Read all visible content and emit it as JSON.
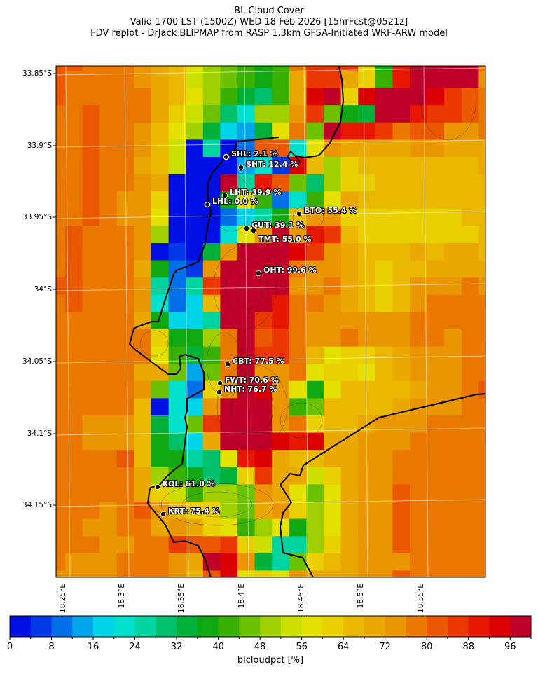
{
  "title": {
    "line1": "BL Cloud Cover",
    "line2": "Valid 1700 LST (1500Z) WED 18 Feb 2026 [15hrFcst@0521z]",
    "line3": "FDV replot - DrJack BLIPMAP from RASP 1.3km GFSA-Initiated WRF-ARW model"
  },
  "axes": {
    "y_ticks": [
      "33.85°S",
      "33.9°S",
      "33.95°S",
      "34°S",
      "34.05°S",
      "34.1°S",
      "34.15°S"
    ],
    "x_ticks": [
      "18.25°E",
      "18.3°E",
      "18.35°E",
      "18.4°E",
      "18.45°E",
      "18.5°E",
      "18.55°E"
    ]
  },
  "colorbar": {
    "label": "blcloudpct [%]",
    "ticks": [
      "0",
      "8",
      "16",
      "24",
      "32",
      "40",
      "48",
      "56",
      "64",
      "72",
      "80",
      "88",
      "96"
    ],
    "range": [
      0,
      100
    ],
    "step": 4,
    "colors": [
      "#0010e4",
      "#0038e8",
      "#0070e8",
      "#00a4e8",
      "#00d4e8",
      "#00e0cc",
      "#00d4a0",
      "#00c06c",
      "#00b038",
      "#10a810",
      "#38b000",
      "#6cc200",
      "#a0d000",
      "#cce000",
      "#e4e000",
      "#ead000",
      "#eab800",
      "#eaa800",
      "#ea9600",
      "#ea7800",
      "#ea5800",
      "#ea3800",
      "#e81800",
      "#dc0000",
      "#c00028"
    ]
  },
  "stations": [
    {
      "label": "SHL: 2.1 %"
    },
    {
      "label": "SHT: 12.4 %"
    },
    {
      "label": "LHT: 39.9 %"
    },
    {
      "label": "LHL: 0.0 %"
    },
    {
      "label": "BTO: 55.4 %"
    },
    {
      "label": "GUT: 39.1 %"
    },
    {
      "label": "TMT: 55.0 %"
    },
    {
      "label": "OHT: 99.6 %"
    },
    {
      "label": "CBT: 77.5 %"
    },
    {
      "label": "FWT: 70.6 %"
    },
    {
      "label": "NHT: 76.7 %"
    },
    {
      "label": "KOL: 61.0 %"
    },
    {
      "label": "KRT: 75.4 %"
    }
  ],
  "chart_data": {
    "type": "heatmap",
    "variable": "blcloudpct [%]",
    "lon_range": [
      "18.25°E",
      "18.55°E"
    ],
    "lat_range": [
      "33.85°S",
      "34.15°S"
    ],
    "grid": [
      [
        80,
        80,
        76,
        76,
        76,
        72,
        68,
        64,
        56,
        48,
        44,
        40,
        36,
        40,
        76,
        84,
        84,
        84,
        60,
        36,
        88,
        96,
        96,
        96,
        96,
        76
      ],
      [
        80,
        76,
        76,
        76,
        76,
        72,
        68,
        64,
        52,
        48,
        44,
        40,
        36,
        40,
        68,
        84,
        84,
        68,
        60,
        40,
        88,
        96,
        96,
        96,
        96,
        72
      ],
      [
        80,
        76,
        76,
        76,
        76,
        76,
        68,
        64,
        56,
        48,
        40,
        32,
        28,
        40,
        68,
        92,
        96,
        60,
        92,
        96,
        96,
        96,
        92,
        84,
        80,
        76
      ],
      [
        76,
        76,
        80,
        76,
        76,
        76,
        68,
        60,
        52,
        44,
        28,
        20,
        48,
        48,
        72,
        84,
        44,
        36,
        32,
        96,
        96,
        88,
        84,
        84,
        80,
        76
      ],
      [
        76,
        76,
        80,
        76,
        76,
        72,
        64,
        56,
        48,
        32,
        16,
        12,
        32,
        56,
        76,
        44,
        96,
        88,
        88,
        84,
        76,
        80,
        80,
        72,
        72,
        76
      ],
      [
        76,
        76,
        80,
        76,
        76,
        72,
        64,
        52,
        0,
        24,
        0,
        8,
        80,
        80,
        20,
        56,
        72,
        68,
        68,
        68,
        68,
        72,
        72,
        68,
        68,
        68
      ],
      [
        76,
        76,
        80,
        76,
        76,
        68,
        64,
        52,
        0,
        0,
        0,
        12,
        20,
        4,
        92,
        64,
        48,
        60,
        64,
        64,
        64,
        64,
        64,
        64,
        64,
        68
      ],
      [
        76,
        76,
        80,
        76,
        76,
        72,
        68,
        0,
        0,
        0,
        96,
        24,
        88,
        80,
        44,
        28,
        48,
        60,
        60,
        64,
        64,
        64,
        64,
        64,
        64,
        64
      ],
      [
        76,
        76,
        80,
        76,
        72,
        72,
        60,
        0,
        0,
        0,
        36,
        56,
        40,
        8,
        20,
        40,
        56,
        68,
        64,
        64,
        64,
        64,
        64,
        64,
        64,
        64
      ],
      [
        76,
        76,
        80,
        76,
        72,
        72,
        56,
        0,
        0,
        0,
        8,
        16,
        24,
        36,
        64,
        72,
        72,
        60,
        60,
        60,
        60,
        60,
        60,
        60,
        64,
        64
      ],
      [
        76,
        80,
        76,
        76,
        76,
        72,
        48,
        0,
        0,
        0,
        20,
        56,
        72,
        96,
        72,
        88,
        84,
        64,
        60,
        60,
        60,
        60,
        60,
        60,
        60,
        64
      ],
      [
        76,
        80,
        76,
        76,
        76,
        72,
        0,
        4,
        0,
        32,
        72,
        96,
        96,
        96,
        92,
        84,
        72,
        68,
        64,
        64,
        64,
        68,
        64,
        68,
        68,
        64
      ],
      [
        76,
        80,
        76,
        76,
        76,
        68,
        36,
        8,
        4,
        72,
        96,
        96,
        96,
        96,
        76,
        72,
        72,
        68,
        64,
        60,
        64,
        64,
        68,
        68,
        68,
        68
      ],
      [
        80,
        80,
        76,
        76,
        76,
        72,
        24,
        8,
        24,
        84,
        96,
        96,
        96,
        96,
        72,
        72,
        76,
        68,
        64,
        60,
        64,
        72,
        72,
        72,
        76,
        72
      ],
      [
        76,
        80,
        76,
        76,
        76,
        72,
        20,
        10,
        16,
        64,
        96,
        96,
        96,
        88,
        76,
        76,
        72,
        68,
        64,
        60,
        64,
        72,
        76,
        76,
        76,
        76
      ],
      [
        76,
        76,
        76,
        76,
        76,
        68,
        36,
        16,
        16,
        24,
        96,
        96,
        84,
        88,
        76,
        72,
        72,
        72,
        72,
        72,
        72,
        76,
        76,
        76,
        76,
        76
      ],
      [
        76,
        76,
        76,
        76,
        76,
        76,
        60,
        36,
        36,
        48,
        76,
        96,
        80,
        84,
        76,
        72,
        72,
        76,
        72,
        72,
        72,
        76,
        76,
        72,
        76,
        76
      ],
      [
        76,
        76,
        76,
        76,
        76,
        76,
        56,
        40,
        32,
        40,
        76,
        96,
        84,
        84,
        76,
        64,
        56,
        60,
        60,
        64,
        68,
        72,
        72,
        72,
        76,
        76
      ],
      [
        76,
        76,
        76,
        76,
        76,
        68,
        68,
        44,
        12,
        44,
        76,
        96,
        72,
        72,
        76,
        56,
        60,
        60,
        56,
        64,
        68,
        72,
        72,
        72,
        76,
        76
      ],
      [
        76,
        76,
        76,
        76,
        76,
        72,
        44,
        20,
        8,
        60,
        72,
        96,
        92,
        72,
        56,
        36,
        56,
        64,
        64,
        64,
        64,
        68,
        72,
        72,
        76,
        80
      ],
      [
        76,
        76,
        76,
        76,
        76,
        64,
        0,
        20,
        16,
        72,
        96,
        96,
        96,
        72,
        40,
        44,
        64,
        64,
        64,
        64,
        68,
        72,
        72,
        72,
        76,
        76
      ],
      [
        76,
        76,
        72,
        72,
        72,
        64,
        32,
        20,
        44,
        84,
        96,
        96,
        96,
        72,
        76,
        60,
        64,
        64,
        68,
        72,
        72,
        72,
        76,
        76,
        76,
        76
      ],
      [
        76,
        76,
        72,
        72,
        72,
        64,
        36,
        28,
        16,
        68,
        96,
        96,
        96,
        92,
        88,
        92,
        68,
        68,
        72,
        72,
        72,
        76,
        76,
        76,
        76,
        76
      ],
      [
        76,
        76,
        76,
        76,
        80,
        64,
        36,
        36,
        24,
        28,
        56,
        88,
        92,
        68,
        64,
        64,
        68,
        68,
        72,
        72,
        76,
        76,
        76,
        76,
        76,
        76
      ],
      [
        76,
        76,
        76,
        76,
        76,
        68,
        48,
        40,
        36,
        28,
        32,
        60,
        84,
        68,
        68,
        52,
        60,
        68,
        72,
        72,
        76,
        76,
        76,
        76,
        76,
        76
      ],
      [
        76,
        76,
        76,
        76,
        76,
        68,
        60,
        52,
        40,
        48,
        48,
        44,
        72,
        68,
        56,
        44,
        56,
        68,
        72,
        72,
        80,
        76,
        76,
        76,
        76,
        76
      ],
      [
        76,
        76,
        76,
        72,
        76,
        80,
        72,
        64,
        60,
        60,
        48,
        44,
        68,
        72,
        60,
        48,
        56,
        68,
        72,
        72,
        80,
        76,
        76,
        76,
        76,
        76
      ],
      [
        76,
        76,
        72,
        72,
        76,
        76,
        68,
        72,
        68,
        60,
        56,
        40,
        48,
        56,
        36,
        48,
        56,
        68,
        72,
        72,
        80,
        76,
        76,
        76,
        76,
        76
      ],
      [
        76,
        76,
        76,
        72,
        72,
        76,
        76,
        84,
        80,
        80,
        84,
        60,
        52,
        24,
        24,
        48,
        60,
        68,
        72,
        72,
        80,
        76,
        76,
        76,
        76,
        76
      ],
      [
        76,
        72,
        72,
        72,
        76,
        76,
        76,
        72,
        68,
        96,
        92,
        72,
        32,
        24,
        44,
        60,
        64,
        68,
        72,
        72,
        72,
        76,
        76,
        76,
        76,
        76
      ],
      [
        72,
        72,
        72,
        72,
        76,
        76,
        76,
        72,
        64,
        80,
        92,
        56,
        60,
        56,
        72,
        68,
        68,
        68,
        72,
        72,
        80,
        76,
        76,
        76,
        76,
        76
      ]
    ]
  }
}
